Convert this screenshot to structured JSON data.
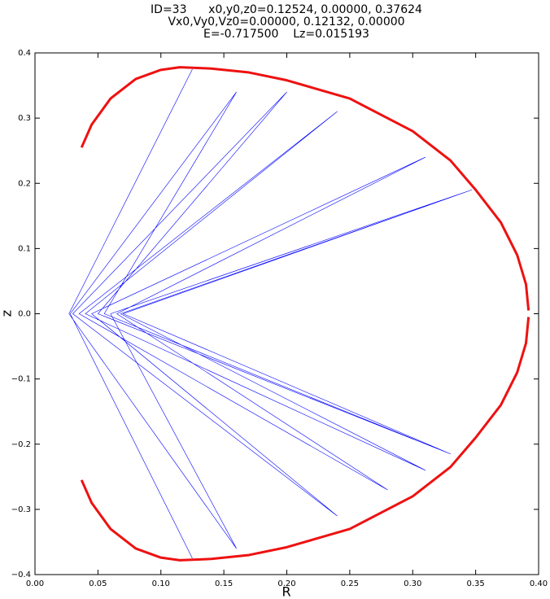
{
  "chart_data": {
    "type": "line",
    "title": [
      "ID=33      x0,y0,z0=0.12524, 0.00000, 0.37624",
      "Vx0,Vy0,Vz0=0.00000, 0.12132, 0.00000",
      "E=-0.717500    Lz=0.015193"
    ],
    "x_label": "R",
    "y_label": "z",
    "xlim": [
      0,
      0.4
    ],
    "ylim": [
      -0.4,
      0.4
    ],
    "xticks": [
      {
        "value": 0,
        "label": "0.00"
      },
      0.05,
      {
        "value": 0.1,
        "label": "0.10"
      },
      0.15,
      {
        "value": 0.2,
        "label": "0.20"
      },
      0.25,
      {
        "value": 0.3,
        "label": "0.30"
      },
      0.35,
      {
        "value": 0.4,
        "label": "0.40"
      }
    ],
    "yticks": [
      {
        "value": -0.4,
        "label": "−0.4"
      },
      {
        "value": -0.3,
        "label": "−0.3"
      },
      {
        "value": -0.2,
        "label": "−0.2"
      },
      {
        "value": -0.1,
        "label": "−0.1"
      },
      {
        "value": 0,
        "label": "0.0"
      },
      0.1,
      0.2,
      0.3,
      0.4
    ],
    "series": [
      {
        "color": "#0000ff",
        "width": 0.6,
        "x": [
          0.125,
          0.027,
          0.16,
          0.06,
          0.347,
          0.07,
          0.33,
          0.05,
          0.2,
          0.03,
          0.24,
          0.045,
          0.31,
          0.065,
          0.28,
          0.035,
          0.24,
          0.04,
          0.31,
          0.068,
          0.347,
          0.07,
          0.33,
          0.055,
          0.16,
          0.028,
          0.125
        ],
        "values": [
          0.375,
          0,
          -0.36,
          0,
          0.19,
          0,
          -0.215,
          0,
          0.34,
          0,
          -0.31,
          0,
          0.24,
          0,
          -0.27,
          0,
          0.31,
          0,
          -0.24,
          0,
          0.19,
          0,
          -0.215,
          0,
          0.34,
          0,
          -0.375
        ]
      },
      {
        "color": "#ee1111",
        "width": 3,
        "x": [
          0.037,
          0.045,
          0.06,
          0.08,
          0.1,
          0.115,
          0.14,
          0.17,
          0.2,
          0.25,
          0.3,
          0.33,
          0.35,
          0.37,
          0.383,
          0.39,
          0.392,
          0.392,
          0.392,
          0.39,
          0.383,
          0.37,
          0.35,
          0.33,
          0.3,
          0.25,
          0.2,
          0.17,
          0.14,
          0.115,
          0.1,
          0.08,
          0.06,
          0.045,
          0.037
        ],
        "values": [
          0.255,
          0.29,
          0.33,
          0.36,
          0.374,
          0.378,
          0.376,
          0.37,
          0.358,
          0.33,
          0.28,
          0.235,
          0.19,
          0.14,
          0.09,
          0.045,
          0.005,
          null,
          -0.005,
          -0.045,
          -0.09,
          -0.14,
          -0.19,
          -0.235,
          -0.28,
          -0.33,
          -0.358,
          -0.37,
          -0.376,
          -0.378,
          -0.374,
          -0.36,
          -0.33,
          -0.29,
          -0.255
        ]
      }
    ]
  }
}
